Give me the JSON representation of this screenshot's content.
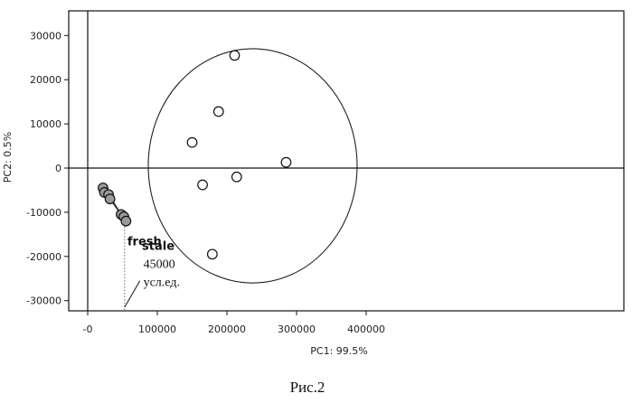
{
  "chart_data": {
    "type": "scatter",
    "title": "",
    "xlabel": "PC1: 99.5%",
    "ylabel": "PC2: 0.5%",
    "xlim": [
      -15000,
      425000
    ],
    "ylim": [
      -32000,
      35000
    ],
    "x_ticks": [
      0,
      100000,
      200000,
      300000,
      400000
    ],
    "x_tick_labels": [
      "-0",
      "100000",
      "200000",
      "300000",
      "400000"
    ],
    "y_ticks": [
      -30000,
      -20000,
      -10000,
      0,
      10000,
      20000,
      30000
    ],
    "y_tick_labels": [
      "-30000",
      "-20000",
      "-10000",
      "0",
      "10000",
      "20000",
      "30000"
    ],
    "grid": false,
    "series": [
      {
        "name": "fresh",
        "marker": "filled-circle",
        "color": "#9a9a9a",
        "x": [
          22000,
          24000,
          30000,
          32000,
          48000,
          52000,
          55000
        ],
        "y": [
          -4500,
          -5500,
          -6000,
          -7000,
          -10500,
          -11000,
          -12000
        ]
      },
      {
        "name": "stale",
        "marker": "open-circle",
        "color": "#ffffff",
        "x": [
          211000,
          188000,
          150000,
          165000,
          214000,
          285000,
          179000
        ],
        "y": [
          25500,
          12800,
          5800,
          -3800,
          -2000,
          1300,
          -19500
        ]
      }
    ],
    "ellipse": {
      "center_x": 237000,
      "center_y": 500,
      "radius_x": 150000,
      "radius_y": 26500
    },
    "fresh_cluster_links": [
      [
        [
          22000,
          -4500
        ],
        [
          32000,
          -7000
        ]
      ],
      [
        [
          24000,
          -5500
        ],
        [
          30000,
          -6000
        ]
      ],
      [
        [
          30000,
          -6000
        ],
        [
          48000,
          -10500
        ]
      ],
      [
        [
          32000,
          -7000
        ],
        [
          55000,
          -12000
        ]
      ],
      [
        [
          48000,
          -10500
        ],
        [
          52000,
          -11000
        ]
      ]
    ],
    "annotation": {
      "text_line1": "45000",
      "text_line2": "усл.ед.",
      "marker_x": 53000,
      "dotted_from_y": -12500,
      "leader_from": [
        53000,
        -31500
      ],
      "leader_to": [
        75000,
        -25500
      ],
      "text_at": [
        80000,
        -23000
      ]
    },
    "group_labels": {
      "fresh_at": [
        57000,
        -16500
      ],
      "stale_at": [
        78000,
        -17500
      ]
    }
  },
  "caption": "Рис.2"
}
